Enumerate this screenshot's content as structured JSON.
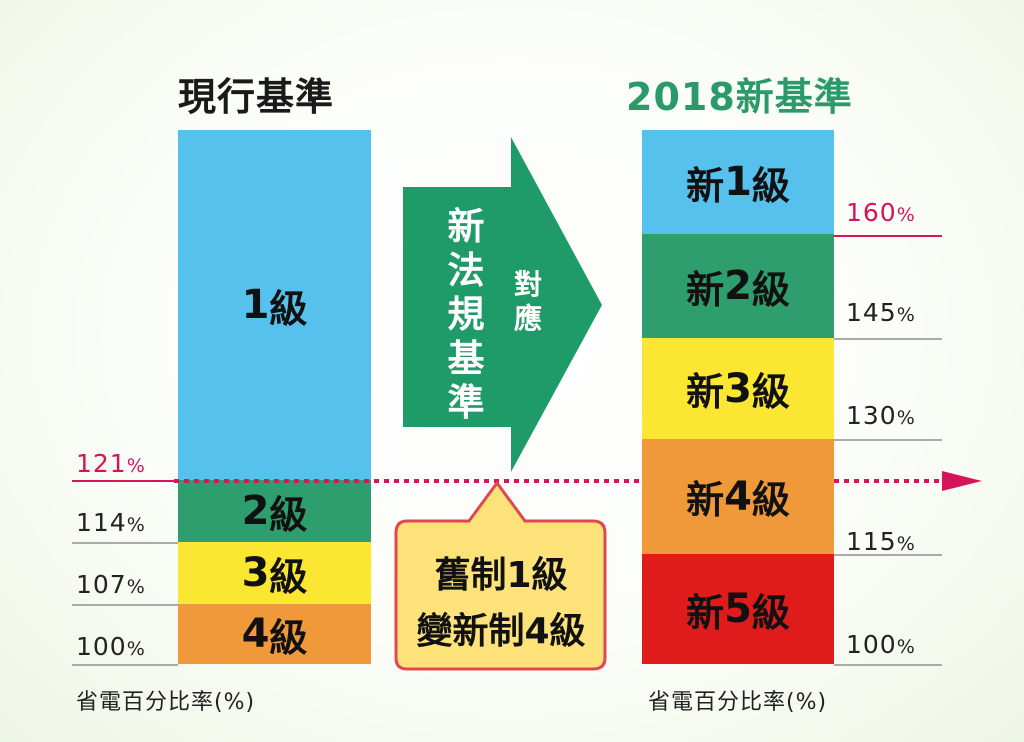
{
  "current": {
    "title": "現行基準",
    "levels": [
      {
        "num": "1",
        "unit": "級"
      },
      {
        "num": "2",
        "unit": "級"
      },
      {
        "num": "3",
        "unit": "級"
      },
      {
        "num": "4",
        "unit": "級"
      }
    ],
    "percents": [
      "121",
      "114",
      "107",
      "100"
    ],
    "pct_symbol": "%",
    "axis_label": "省電百分比率(%)"
  },
  "new": {
    "title": "2018新基準",
    "levels": [
      {
        "prefix": "新",
        "num": "1",
        "unit": "級"
      },
      {
        "prefix": "新",
        "num": "2",
        "unit": "級"
      },
      {
        "prefix": "新",
        "num": "3",
        "unit": "級"
      },
      {
        "prefix": "新",
        "num": "4",
        "unit": "級"
      },
      {
        "prefix": "新",
        "num": "5",
        "unit": "級"
      }
    ],
    "percents": [
      "160",
      "145",
      "130",
      "115",
      "100"
    ],
    "pct_symbol": "%",
    "axis_label": "省電百分比率(%)"
  },
  "arrow": {
    "main_text": "新法規基準",
    "side_text": "對應"
  },
  "callout": {
    "line1": "舊制1級",
    "line2": "變新制4級"
  },
  "colors": {
    "level1": "#57c1ee",
    "level2": "#2f9e6e",
    "level3": "#fbe632",
    "level4": "#f0993a",
    "level5": "#e01b1b",
    "arrow": "#1f9b6a",
    "new_title": "#2a9a6a",
    "threshold": "#d6145c",
    "callout_bg": "#fde27a",
    "callout_border": "#e0484f"
  }
}
